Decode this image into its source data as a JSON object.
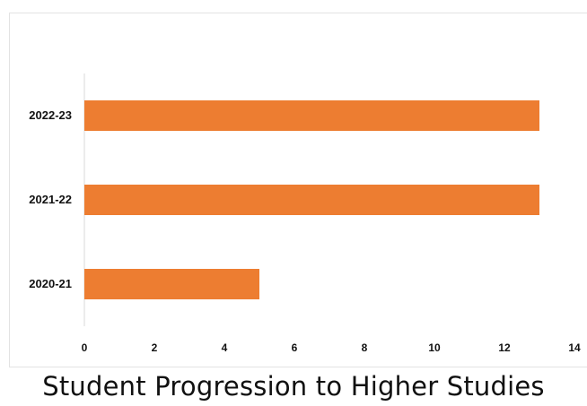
{
  "caption": "Student Progression to Higher Studies",
  "chart_data": {
    "type": "bar",
    "orientation": "horizontal",
    "categories": [
      "2020-21",
      "2021-22",
      "2022-23"
    ],
    "values": [
      5,
      13,
      13
    ],
    "xlim": [
      0,
      14
    ],
    "xticks": [
      0,
      2,
      4,
      6,
      8,
      10,
      12,
      14
    ],
    "bar_color": "#ED7D31",
    "grid": false
  }
}
